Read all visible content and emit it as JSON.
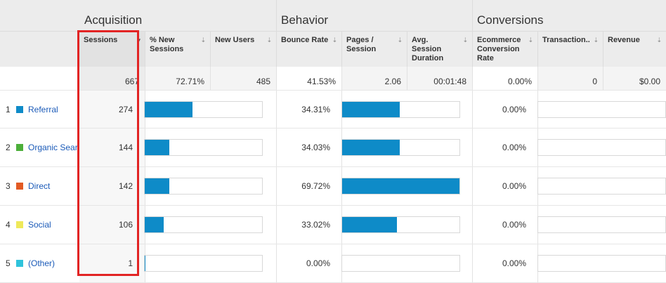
{
  "groups": {
    "acquisition": "Acquisition",
    "behavior": "Behavior",
    "conversions": "Conversions"
  },
  "columns": {
    "sessions": "Sessions",
    "pct_new_sessions": "% New Sessions",
    "new_users": "New Users",
    "bounce_rate": "Bounce Rate",
    "pages_per_session": "Pages / Session",
    "avg_session_duration": "Avg. Session Duration",
    "ecommerce_conversion_rate": "Ecommerce Conversion Rate",
    "transactions": "Transaction..",
    "revenue": "Revenue"
  },
  "totals": {
    "sessions": "667",
    "pct_new_sessions": "72.71%",
    "new_users": "485",
    "bounce_rate": "41.53%",
    "pages_per_session": "2.06",
    "avg_session_duration": "00:01:48",
    "ecommerce_conversion_rate": "0.00%",
    "transactions": "0",
    "revenue": "$0.00"
  },
  "rows": [
    {
      "index": "1",
      "channel": "Referral",
      "color": "#0e8bc8",
      "sessions": "274",
      "new_sessions_bar": 0.41,
      "bounce_rate": "34.31%",
      "pages_bar": 0.49,
      "conversion_rate": "0.00%"
    },
    {
      "index": "2",
      "channel": "Organic Search",
      "color": "#4caf3a",
      "sessions": "144",
      "new_sessions_bar": 0.21,
      "bounce_rate": "34.03%",
      "pages_bar": 0.49,
      "conversion_rate": "0.00%"
    },
    {
      "index": "3",
      "channel": "Direct",
      "color": "#e25a24",
      "sessions": "142",
      "new_sessions_bar": 0.21,
      "bounce_rate": "69.72%",
      "pages_bar": 1.0,
      "conversion_rate": "0.00%"
    },
    {
      "index": "4",
      "channel": "Social",
      "color": "#efe95a",
      "sessions": "106",
      "new_sessions_bar": 0.16,
      "bounce_rate": "33.02%",
      "pages_bar": 0.47,
      "conversion_rate": "0.00%"
    },
    {
      "index": "5",
      "channel": "(Other)",
      "color": "#2fc3dc",
      "sessions": "1",
      "new_sessions_bar": 0.0,
      "bounce_rate": "0.00%",
      "pages_bar": 0.0,
      "conversion_rate": "0.00%"
    }
  ],
  "icons": {
    "sort": "sort-arrow-icon"
  },
  "colors": {
    "bar": "#0e8bc8",
    "highlight": "#e22424",
    "link": "#1a5ab8"
  }
}
